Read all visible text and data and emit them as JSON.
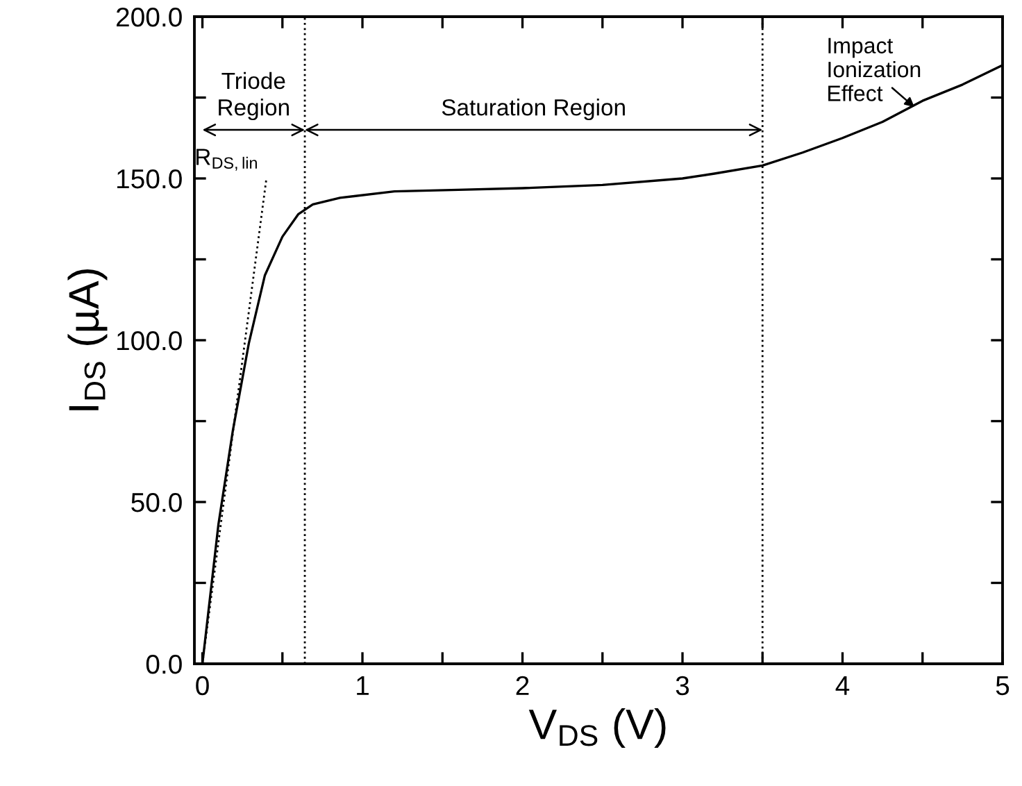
{
  "chart_data": {
    "type": "line",
    "xlabel": "V$_{DS}$ (V)",
    "ylabel": "I$_{DS}$ (µA)",
    "xlim": [
      -0.05,
      5
    ],
    "ylim": [
      0,
      200
    ],
    "xticks": [
      0,
      {
        "value": 0.5,
        "label": null
      },
      1,
      {
        "value": 1.5,
        "label": null
      },
      2,
      {
        "value": 2.5,
        "label": null
      },
      3,
      {
        "value": 3.5,
        "label": null
      },
      4,
      {
        "value": 4.5,
        "label": null
      },
      5
    ],
    "yticks": [
      {
        "value": 0,
        "label": "0.0"
      },
      {
        "value": 25,
        "label": null
      },
      {
        "value": 50,
        "label": "50.0"
      },
      {
        "value": 75,
        "label": null
      },
      {
        "value": 100,
        "label": "100.0"
      },
      {
        "value": 125,
        "label": null
      },
      {
        "value": 150,
        "label": "150.0"
      },
      {
        "value": 175,
        "label": null
      },
      {
        "value": 200,
        "label": "200.0"
      }
    ],
    "grid": false,
    "series": [
      {
        "color": "#000000",
        "line_style": "solid",
        "x": [
          0,
          0.1,
          0.19,
          0.29,
          0.39,
          0.5,
          0.6,
          0.69,
          0.86,
          1.2,
          1.6,
          2.0,
          2.5,
          3.0,
          3.2,
          3.5,
          3.75,
          4.0,
          4.25,
          4.5,
          4.75,
          5.0
        ],
        "values": [
          0,
          43,
          72,
          99,
          120,
          132,
          139,
          142,
          144,
          146,
          146.5,
          147,
          148,
          150,
          151.5,
          154,
          158,
          162.5,
          167.5,
          174,
          179,
          185
        ]
      },
      {
        "color": "#000000",
        "line_style": "dotted",
        "x": [
          0,
          0.4
        ],
        "values": [
          0,
          150
        ]
      }
    ],
    "ref_lines": [
      {
        "axis": "x",
        "value": 0.64,
        "line_style": "dotted",
        "color": "#000000"
      },
      {
        "axis": "x",
        "value": 3.5,
        "line_style": "dotted",
        "color": "#000000"
      }
    ],
    "annotations": [
      "Triode\nRegion",
      "Saturation Region",
      {
        "text": "R$_{DS,lin}$",
        "x": 0.4,
        "y": 150
      },
      {
        "text": "Impact\nIonization\nEffect",
        "x": 4.45,
        "y": 172
      }
    ]
  }
}
